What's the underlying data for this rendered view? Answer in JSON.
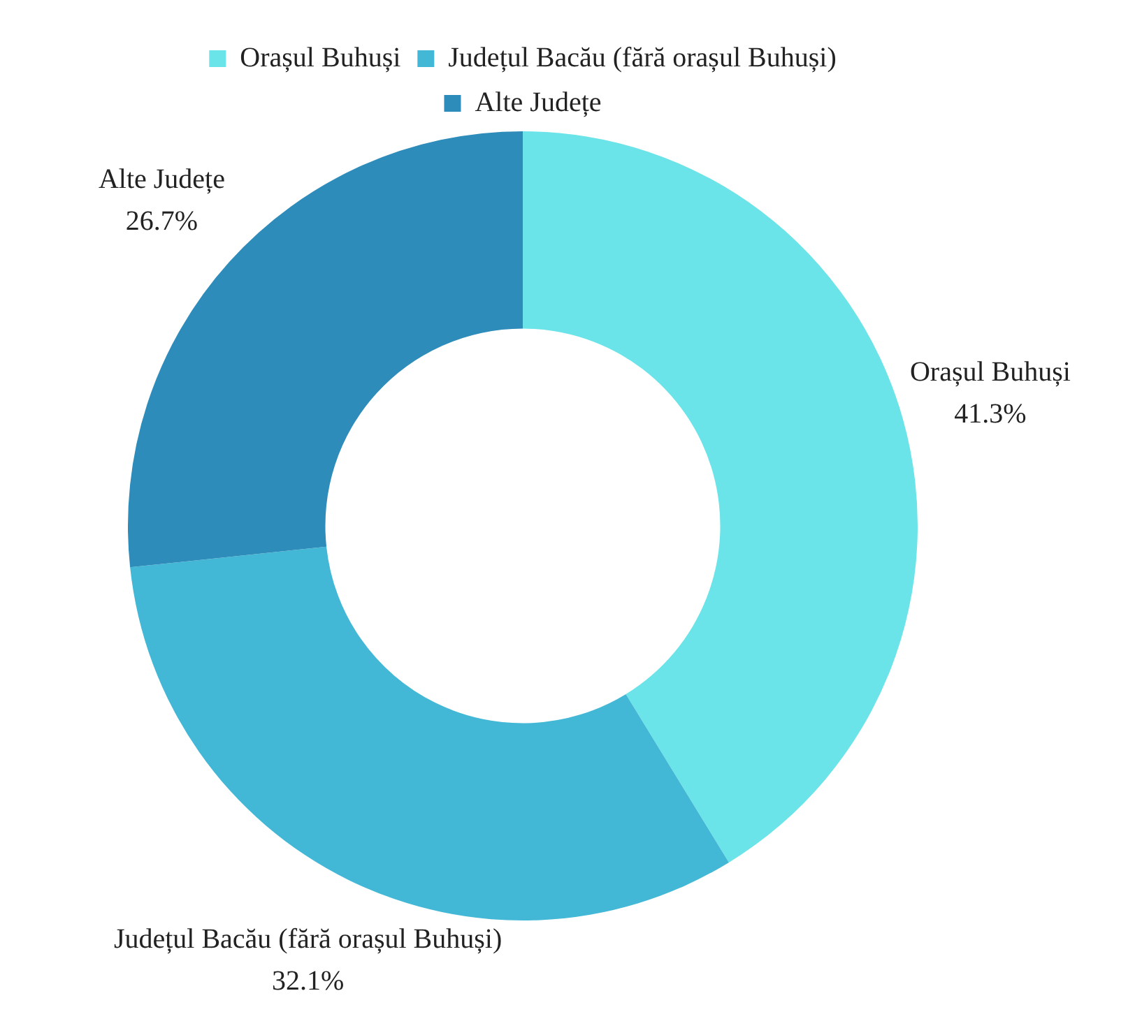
{
  "chart_data": {
    "type": "donut",
    "categories": [
      "Orașul Buhuși",
      "Județul Bacău (fără orașul Buhuși)",
      "Alte Județe"
    ],
    "values": [
      41.3,
      32.1,
      26.7
    ],
    "value_labels": [
      "41.3%",
      "32.1%",
      "26.7%"
    ],
    "colors": [
      "#6ae4e8",
      "#43b8d6",
      "#2e8cba"
    ],
    "legend": "top"
  }
}
